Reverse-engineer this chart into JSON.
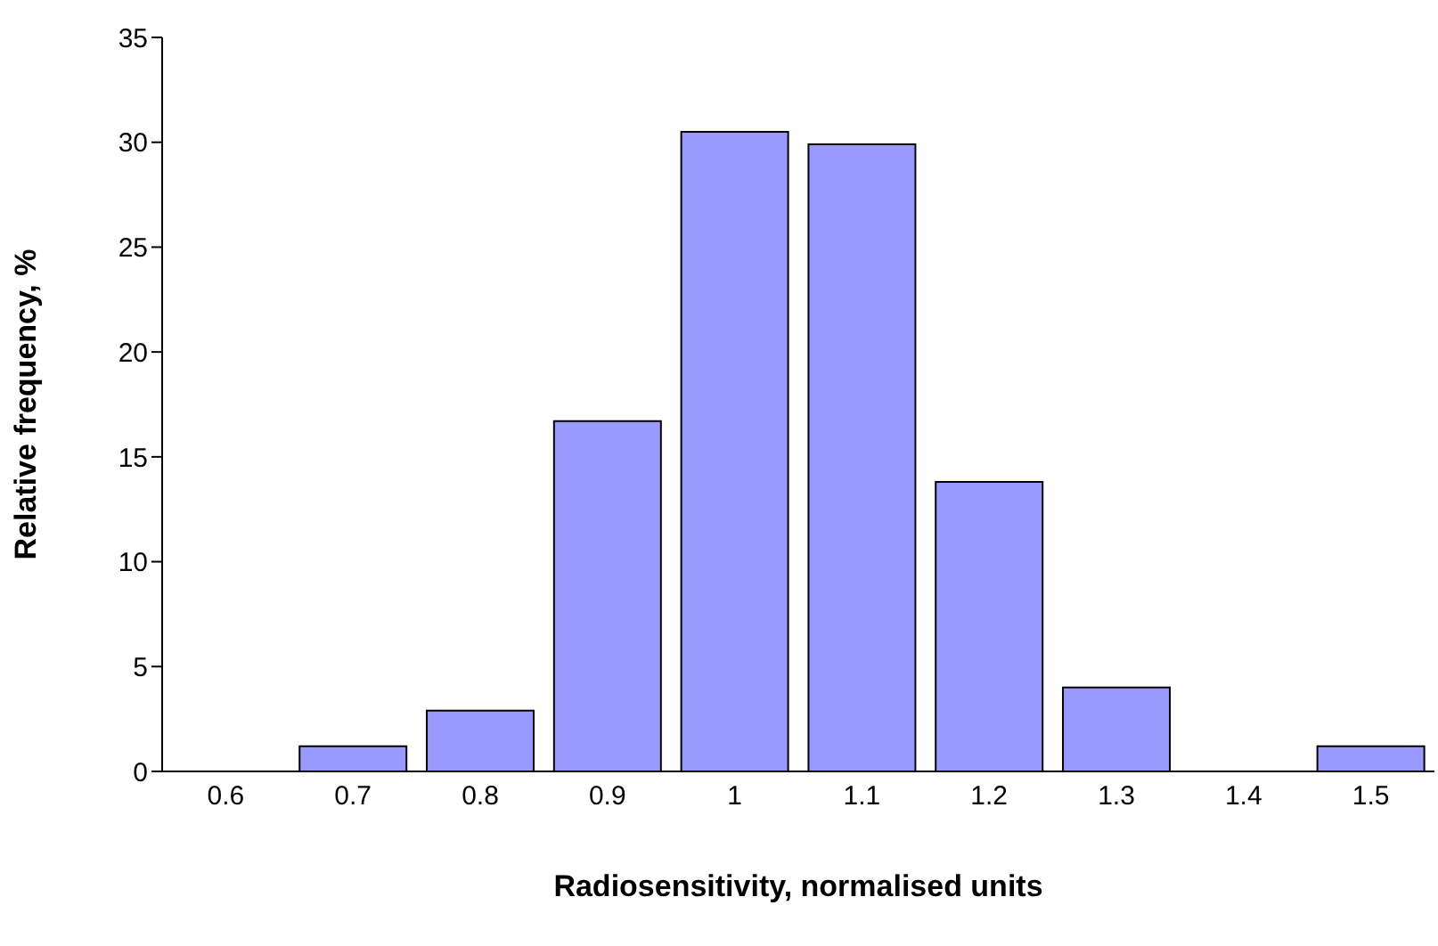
{
  "chart_data": {
    "type": "bar",
    "xlabel": "Radiosensitivity, normalised units",
    "ylabel": "Relative frequency, %",
    "categories": [
      "0.6",
      "0.7",
      "0.8",
      "0.9",
      "1",
      "1.1",
      "1.2",
      "1.3",
      "1.4",
      "1.5"
    ],
    "values": [
      0,
      1.2,
      2.9,
      16.7,
      30.5,
      29.9,
      13.8,
      4.0,
      0,
      1.2
    ],
    "color": "#9999ff",
    "ylim": [
      0,
      35
    ],
    "yticks": [
      0,
      5,
      10,
      15,
      20,
      25,
      30,
      35
    ],
    "grid": false,
    "legend": false
  }
}
